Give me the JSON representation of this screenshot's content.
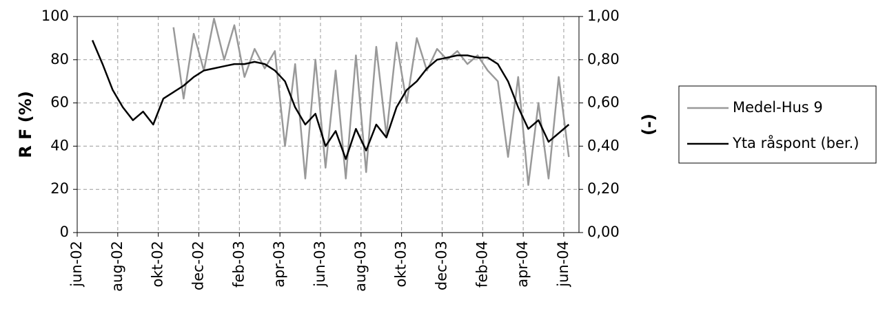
{
  "chart_data": {
    "type": "line",
    "y_label": "R F (%)",
    "y2_label": "(-)",
    "x": [
      0.75,
      1.25,
      1.75,
      2.25,
      2.75,
      3.25,
      3.75,
      4.25,
      4.75,
      5.25,
      5.75,
      6.25,
      6.75,
      7.25,
      7.75,
      8.25,
      8.75,
      9.25,
      9.75,
      10.25,
      10.75,
      11.25,
      11.75,
      12.25,
      12.75,
      13.25,
      13.75,
      14.25,
      14.75,
      15.25,
      15.75,
      16.25,
      16.75,
      17.25,
      17.75,
      18.25,
      18.75,
      19.25,
      19.75,
      20.25,
      20.75,
      21.25,
      21.75,
      22.25,
      22.75,
      23.25,
      23.75,
      24.25
    ],
    "series": [
      {
        "name": "Medel-Hus 9",
        "color": "#999999",
        "axis": "y",
        "values": [
          null,
          null,
          null,
          null,
          null,
          null,
          null,
          null,
          95,
          62,
          92,
          75,
          99,
          80,
          96,
          72,
          85,
          76,
          84,
          40,
          78,
          25,
          80,
          30,
          75,
          25,
          82,
          28,
          86,
          45,
          88,
          60,
          90,
          75,
          85,
          80,
          84,
          78,
          82,
          75,
          70,
          35,
          72,
          22,
          60,
          25,
          72,
          35
        ]
      },
      {
        "name": "Yta råspont (ber.)",
        "color": "#000000",
        "axis": "y2",
        "values": [
          0.89,
          0.78,
          0.66,
          0.58,
          0.52,
          0.56,
          0.5,
          0.62,
          0.65,
          0.68,
          0.72,
          0.75,
          0.76,
          0.77,
          0.78,
          0.78,
          0.79,
          0.78,
          0.75,
          0.7,
          0.58,
          0.5,
          0.55,
          0.4,
          0.47,
          0.34,
          0.48,
          0.38,
          0.5,
          0.44,
          0.58,
          0.66,
          0.7,
          0.76,
          0.8,
          0.81,
          0.82,
          0.82,
          0.81,
          0.81,
          0.78,
          0.7,
          0.58,
          0.48,
          0.52,
          0.42,
          0.46,
          0.5
        ]
      }
    ],
    "xlim": [
      0,
      24.75
    ],
    "xticks": [
      {
        "value": 0,
        "label": "jun-02"
      },
      {
        "value": 2,
        "label": "aug-02"
      },
      {
        "value": 4,
        "label": "okt-02"
      },
      {
        "value": 6,
        "label": "dec-02"
      },
      {
        "value": 8,
        "label": "feb-03"
      },
      {
        "value": 10,
        "label": "apr-03"
      },
      {
        "value": 12,
        "label": "jun-03"
      },
      {
        "value": 14,
        "label": "aug-03"
      },
      {
        "value": 16,
        "label": "okt-03"
      },
      {
        "value": 18,
        "label": "dec-03"
      },
      {
        "value": 20,
        "label": "feb-04"
      },
      {
        "value": 22,
        "label": "apr-04"
      },
      {
        "value": 24,
        "label": "jun-04"
      }
    ],
    "ylim": [
      0,
      100
    ],
    "yticks": [
      0,
      20,
      40,
      60,
      80,
      100
    ],
    "y2lim": [
      0,
      1
    ],
    "y2ticks": [
      {
        "value": 0,
        "label": "0,00"
      },
      {
        "value": 0.2,
        "label": "0,20"
      },
      {
        "value": 0.4,
        "label": "0,40"
      },
      {
        "value": 0.6,
        "label": "0,60"
      },
      {
        "value": 0.8,
        "label": "0,80"
      },
      {
        "value": 1,
        "label": "1,00"
      }
    ],
    "grid": true,
    "legend": "right"
  }
}
